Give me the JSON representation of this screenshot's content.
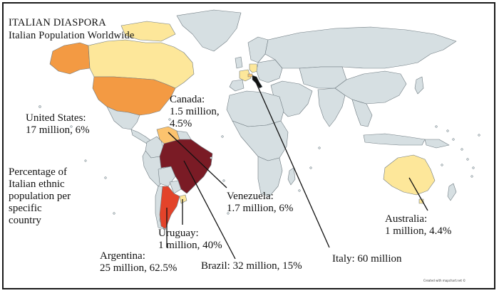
{
  "title": "ITALIAN DIASPORA",
  "subtitle": "Italian Population Worldwide",
  "legend_note": "Percentage of\nItalian ethnic\npopulation per\nspecific\ncountry",
  "credit": "Created with mapchart.net ©",
  "colors": {
    "default_land": "#d6dfe2",
    "border": "#6e7a80",
    "pale_yellow": "#fde79a",
    "light_orange": "#fcc36e",
    "orange": "#f39a43",
    "red_orange": "#e3432a",
    "dark_red": "#7a1b25",
    "italy": "#111111",
    "leader_lines": "#111111"
  },
  "regions": [
    {
      "country": "Canada",
      "color": "pale_yellow"
    },
    {
      "country": "Alaska",
      "color": "orange"
    },
    {
      "country": "United States",
      "color": "orange"
    },
    {
      "country": "Venezuela",
      "color": "light_orange"
    },
    {
      "country": "Brazil",
      "color": "dark_red"
    },
    {
      "country": "Argentina",
      "color": "red_orange"
    },
    {
      "country": "Uruguay",
      "color": "pale_yellow"
    },
    {
      "country": "Australia",
      "color": "pale_yellow"
    },
    {
      "country": "France",
      "color": "pale_yellow"
    },
    {
      "country": "Germany",
      "color": "pale_yellow"
    },
    {
      "country": "Switzerland",
      "color": "light_orange"
    },
    {
      "country": "Italy",
      "color": "italy"
    }
  ],
  "labels": {
    "us": "United States:\n17 million, 6%",
    "canada": "Canada:\n1.5 million,\n4.5%",
    "venezuela": "Venezuela:\n1.7 million, 6%",
    "uruguay": "Uruguay:\n1 million, 40%",
    "argentina": "Argentina:\n25 million, 62.5%",
    "brazil": "Brazil: 32 million, 15%",
    "italy": "Italy: 60 million",
    "australia": "Australia:\n1 million, 4.4%"
  }
}
